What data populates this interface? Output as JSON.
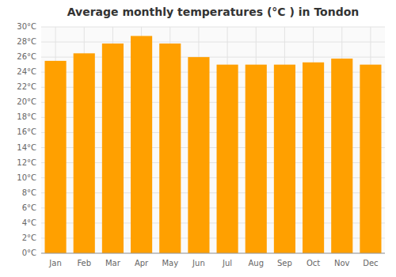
{
  "chart_data": {
    "type": "bar",
    "title": "Average monthly temperatures (°C ) in Tondon",
    "categories": [
      "Jan",
      "Feb",
      "Mar",
      "Apr",
      "May",
      "Jun",
      "Jul",
      "Aug",
      "Sep",
      "Oct",
      "Nov",
      "Dec"
    ],
    "values": [
      25.5,
      26.5,
      27.8,
      28.8,
      27.8,
      26.0,
      25.0,
      25.0,
      25.0,
      25.3,
      25.8,
      25.0
    ],
    "color": "#FFA000",
    "ylim": [
      0,
      30
    ],
    "yticks": [
      {
        "value": 0,
        "label": "0°C"
      },
      {
        "value": 2,
        "label": "2°C"
      },
      {
        "value": 4,
        "label": "4°C"
      },
      {
        "value": 6,
        "label": "6°C"
      },
      {
        "value": 8,
        "label": "8°C"
      },
      {
        "value": 10,
        "label": "10°C"
      },
      {
        "value": 12,
        "label": "12°C"
      },
      {
        "value": 14,
        "label": "14°C"
      },
      {
        "value": 16,
        "label": "16°C"
      },
      {
        "value": 18,
        "label": "18°C"
      },
      {
        "value": 20,
        "label": "20°C"
      },
      {
        "value": 22,
        "label": "22°C"
      },
      {
        "value": 24,
        "label": "24°C"
      },
      {
        "value": 26,
        "label": "26°C"
      },
      {
        "value": 28,
        "label": "28°C"
      },
      {
        "value": 30,
        "label": "30°C"
      }
    ],
    "grid": true
  }
}
